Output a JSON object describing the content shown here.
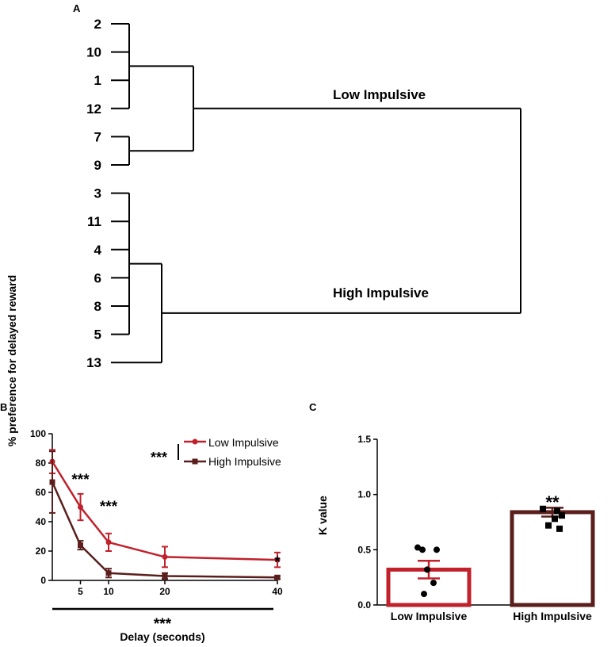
{
  "panels": {
    "a": "A",
    "b": "B",
    "c": "C"
  },
  "colors": {
    "low": "#c0212b",
    "high": "#5a1f1c",
    "line": "#000000"
  },
  "chart_data": [
    {
      "type": "dendrogram",
      "panel": "A",
      "leaves": [
        "2",
        "10",
        "1",
        "12",
        "7",
        "9",
        "3",
        "11",
        "4",
        "6",
        "8",
        "5",
        "13"
      ],
      "clusters": [
        {
          "name": "Low Impulsive",
          "members": [
            "2",
            "10",
            "1",
            "12",
            "7",
            "9"
          ]
        },
        {
          "name": "High Impulsive",
          "members": [
            "3",
            "11",
            "4",
            "6",
            "8",
            "5",
            "13"
          ]
        }
      ]
    },
    {
      "type": "line",
      "panel": "B",
      "xlabel": "Delay (seconds)",
      "ylabel": "% preference for delayed reward",
      "x": [
        0,
        5,
        10,
        20,
        40
      ],
      "xticks": [
        "5",
        "10",
        "20",
        "40"
      ],
      "ylim": [
        0,
        100
      ],
      "yticks": [
        "0",
        "20",
        "40",
        "60",
        "80",
        "100"
      ],
      "series": [
        {
          "name": "Low Impulsive",
          "color": "#c0212b",
          "values": [
            81,
            50,
            26,
            16,
            14
          ],
          "err": [
            8,
            9,
            6,
            7,
            5
          ]
        },
        {
          "name": "High Impulsive",
          "color": "#5a1f1c",
          "values": [
            67,
            24,
            5,
            3,
            2
          ],
          "err": [
            21,
            3,
            3,
            2,
            1
          ]
        }
      ],
      "annotations": [
        {
          "x": 5,
          "text": "***"
        },
        {
          "x": 10,
          "text": "***"
        },
        {
          "x": 40,
          "text": "*"
        }
      ],
      "legend_sig": "***",
      "overall_sig": "***",
      "legend_position": "top-right"
    },
    {
      "type": "bar",
      "panel": "C",
      "ylabel": "K value",
      "categories": [
        "Low Impulsive",
        "High Impulsive"
      ],
      "values": [
        0.32,
        0.84
      ],
      "err": [
        0.08,
        0.04
      ],
      "colors": [
        "#c0212b",
        "#5a1f1c"
      ],
      "ylim": [
        0,
        1.5
      ],
      "yticks": [
        "0.0",
        "0.5",
        "1.0",
        "1.5"
      ],
      "points": [
        [
          0.52,
          0.5,
          0.5,
          0.32,
          0.2,
          0.1
        ],
        [
          0.87,
          0.85,
          0.81,
          0.78,
          0.72,
          0.69
        ]
      ],
      "annotation": "**"
    }
  ]
}
